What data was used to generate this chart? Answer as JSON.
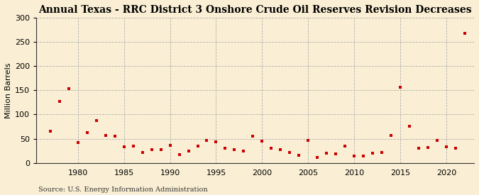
{
  "title": "Annual Texas - RRC District 3 Onshore Crude Oil Reserves Revision Decreases",
  "ylabel": "Million Barrels",
  "source": "Source: U.S. Energy Information Administration",
  "background_color": "#faefd4",
  "plot_background_color": "#faefd4",
  "marker_color": "#cc0000",
  "marker": "s",
  "marker_size": 3.5,
  "xlim": [
    1975.5,
    2023
  ],
  "ylim": [
    0,
    300
  ],
  "yticks": [
    0,
    50,
    100,
    150,
    200,
    250,
    300
  ],
  "xticks": [
    1980,
    1985,
    1990,
    1995,
    2000,
    2005,
    2010,
    2015,
    2020
  ],
  "years": [
    1977,
    1978,
    1979,
    1980,
    1981,
    1982,
    1983,
    1984,
    1985,
    1986,
    1987,
    1988,
    1989,
    1990,
    1991,
    1992,
    1993,
    1994,
    1995,
    1996,
    1997,
    1998,
    1999,
    2000,
    2001,
    2002,
    2003,
    2004,
    2005,
    2006,
    2007,
    2008,
    2009,
    2010,
    2011,
    2012,
    2013,
    2014,
    2015,
    2016,
    2017,
    2018,
    2019,
    2020,
    2021,
    2022
  ],
  "values": [
    65,
    127,
    153,
    42,
    62,
    88,
    57,
    55,
    33,
    35,
    21,
    27,
    28,
    36,
    17,
    24,
    35,
    46,
    44,
    30,
    28,
    24,
    55,
    45,
    30,
    27,
    22,
    16,
    47,
    11,
    20,
    19,
    35,
    15,
    15,
    20,
    22,
    57,
    157,
    76,
    30,
    32,
    47,
    33,
    30,
    268
  ],
  "title_fontsize": 10,
  "tick_fontsize": 8,
  "ylabel_fontsize": 8,
  "source_fontsize": 7
}
